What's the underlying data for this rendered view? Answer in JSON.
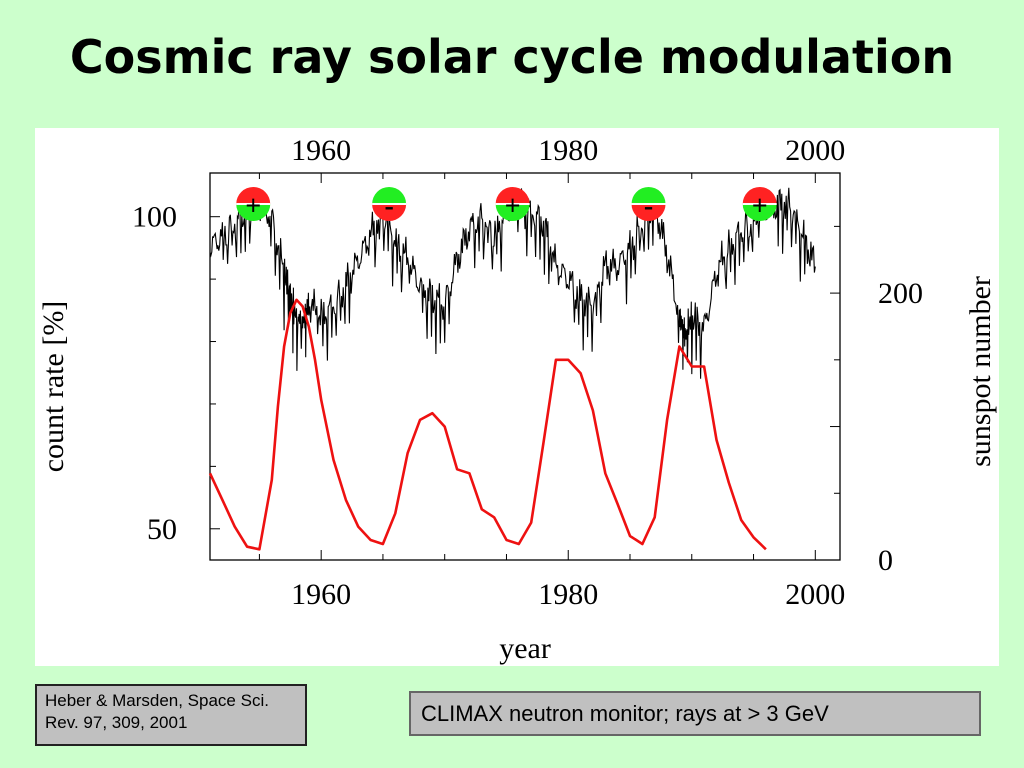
{
  "slide": {
    "title": "Cosmic ray solar cycle modulation",
    "reference": "Heber & Marsden, Space Sci. Rev. 97, 309, 2001",
    "note": "CLIMAX neutron monitor; rays at > 3 GeV",
    "background_color": "#ccffcc"
  },
  "chart_data": {
    "type": "line",
    "xlabel": "year",
    "ylabel_left": "count rate [%]",
    "ylabel_right": "sunspot number",
    "xlim": [
      1951,
      2002
    ],
    "xticks": [
      "1960",
      "1980",
      "2000"
    ],
    "ylim_left": [
      45,
      107
    ],
    "yticks_left": [
      "50",
      "100"
    ],
    "ylim_right": [
      0,
      290
    ],
    "yticks_right": [
      "0",
      "200"
    ],
    "grid": false,
    "series": [
      {
        "color": "#000000",
        "axis": "left",
        "x": [
          1951.0,
          1952.0,
          1953.0,
          1954.0,
          1955.0,
          1956.0,
          1957.0,
          1957.5,
          1958.0,
          1958.5,
          1959.0,
          1960.0,
          1961.0,
          1962.0,
          1963.0,
          1964.0,
          1965.0,
          1966.0,
          1967.0,
          1968.0,
          1969.0,
          1970.0,
          1971.0,
          1972.0,
          1973.0,
          1974.0,
          1975.0,
          1976.0,
          1977.0,
          1978.0,
          1979.0,
          1980.0,
          1981.0,
          1982.0,
          1983.0,
          1984.0,
          1985.0,
          1986.0,
          1987.0,
          1988.0,
          1989.0,
          1989.5,
          1990.0,
          1991.0,
          1992.0,
          1993.0,
          1994.0,
          1995.0,
          1996.0,
          1997.0,
          1998.0,
          1999.0,
          2000.0
        ],
        "y": [
          95,
          97,
          99,
          101,
          102,
          100,
          91,
          87,
          84,
          83,
          86,
          84,
          86,
          89,
          93,
          97,
          101,
          96,
          93,
          89,
          87,
          86,
          93,
          98,
          100,
          97,
          101,
          101,
          101,
          99,
          92,
          90,
          87,
          86,
          92,
          92,
          95,
          99,
          102,
          94,
          84,
          81,
          84,
          82,
          91,
          95,
          98,
          99,
          101,
          102,
          102,
          97,
          92
        ]
      },
      {
        "color": "#ee1111",
        "axis": "right",
        "x": [
          1951.0,
          1952.0,
          1953.0,
          1954.0,
          1955.0,
          1956.0,
          1956.5,
          1957.0,
          1957.5,
          1958.0,
          1958.5,
          1959.0,
          1959.5,
          1960.0,
          1961.0,
          1962.0,
          1963.0,
          1964.0,
          1965.0,
          1966.0,
          1967.0,
          1968.0,
          1969.0,
          1970.0,
          1971.0,
          1972.0,
          1973.0,
          1974.0,
          1975.0,
          1976.0,
          1977.0,
          1978.0,
          1979.0,
          1980.0,
          1981.0,
          1982.0,
          1983.0,
          1984.0,
          1985.0,
          1986.0,
          1987.0,
          1988.0,
          1989.0,
          1990.0,
          1991.0,
          1992.0,
          1993.0,
          1994.0,
          1995.0,
          1996.0
        ],
        "y": [
          65,
          45,
          25,
          10,
          8,
          60,
          115,
          160,
          185,
          195,
          190,
          175,
          150,
          120,
          75,
          45,
          25,
          15,
          12,
          35,
          80,
          105,
          110,
          100,
          68,
          65,
          38,
          32,
          15,
          12,
          28,
          88,
          150,
          150,
          140,
          112,
          65,
          42,
          18,
          12,
          32,
          105,
          160,
          145,
          145,
          90,
          58,
          30,
          17,
          8
        ]
      }
    ],
    "polarity_markers": [
      {
        "year": 1954.5,
        "polarity": "+",
        "top_color": "#ff2222",
        "bottom_color": "#22ee22"
      },
      {
        "year": 1965.5,
        "polarity": "-",
        "top_color": "#22ee22",
        "bottom_color": "#ff2222"
      },
      {
        "year": 1975.5,
        "polarity": "+",
        "top_color": "#ff2222",
        "bottom_color": "#22ee22"
      },
      {
        "year": 1986.5,
        "polarity": "-",
        "top_color": "#22ee22",
        "bottom_color": "#ff2222"
      },
      {
        "year": 1995.5,
        "polarity": "+",
        "top_color": "#ff2222",
        "bottom_color": "#22ee22"
      }
    ]
  }
}
